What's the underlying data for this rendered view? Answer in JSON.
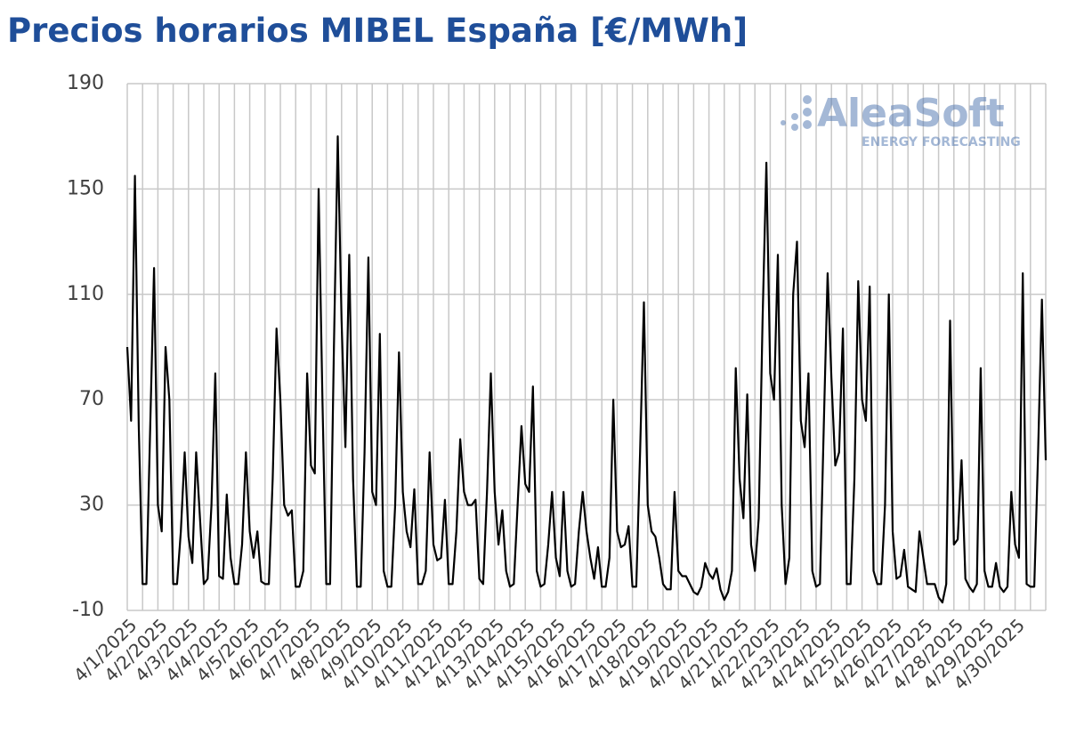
{
  "chart_data": {
    "type": "line",
    "title": "Precios horarios MIBEL España [€/MWh]",
    "watermark": {
      "name": "AleaSoft",
      "tagline": "ENERGY FORECASTING"
    },
    "color": "#000000",
    "ylim": [
      -10,
      190
    ],
    "yticks": [
      -10,
      30,
      70,
      110,
      150,
      190
    ],
    "grid": true,
    "categories": [
      "4/1/2025",
      null,
      null,
      null,
      null,
      null,
      null,
      null,
      "4/2/2025",
      null,
      null,
      null,
      null,
      null,
      null,
      null,
      "4/3/2025",
      null,
      null,
      null,
      null,
      null,
      null,
      null,
      "4/4/2025",
      null,
      null,
      null,
      null,
      null,
      null,
      null,
      "4/5/2025",
      null,
      null,
      null,
      null,
      null,
      null,
      null,
      "4/6/2025",
      null,
      null,
      null,
      null,
      null,
      null,
      null,
      "4/7/2025",
      null,
      null,
      null,
      null,
      null,
      null,
      null,
      "4/8/2025",
      null,
      null,
      null,
      null,
      null,
      null,
      null,
      "4/9/2025",
      null,
      null,
      null,
      null,
      null,
      null,
      null,
      "4/10/2025",
      null,
      null,
      null,
      null,
      null,
      null,
      null,
      "4/11/2025",
      null,
      null,
      null,
      null,
      null,
      null,
      null,
      "4/12/2025",
      null,
      null,
      null,
      null,
      null,
      null,
      null,
      "4/13/2025",
      null,
      null,
      null,
      null,
      null,
      null,
      null,
      "4/14/2025",
      null,
      null,
      null,
      null,
      null,
      null,
      null,
      "4/15/2025",
      null,
      null,
      null,
      null,
      null,
      null,
      null,
      "4/16/2025",
      null,
      null,
      null,
      null,
      null,
      null,
      null,
      "4/17/2025",
      null,
      null,
      null,
      null,
      null,
      null,
      null,
      "4/18/2025",
      null,
      null,
      null,
      null,
      null,
      null,
      null,
      "4/19/2025",
      null,
      null,
      null,
      null,
      null,
      null,
      null,
      "4/20/2025",
      null,
      null,
      null,
      null,
      null,
      null,
      null,
      "4/21/2025",
      null,
      null,
      null,
      null,
      null,
      null,
      null,
      "4/22/2025",
      null,
      null,
      null,
      null,
      null,
      null,
      null,
      "4/23/2025",
      null,
      null,
      null,
      null,
      null,
      null,
      null,
      "4/24/2025",
      null,
      null,
      null,
      null,
      null,
      null,
      null,
      "4/25/2025",
      null,
      null,
      null,
      null,
      null,
      null,
      null,
      "4/26/2025",
      null,
      null,
      null,
      null,
      null,
      null,
      null,
      "4/27/2025",
      null,
      null,
      null,
      null,
      null,
      null,
      null,
      "4/28/2025",
      null,
      null,
      null,
      null,
      null,
      null,
      null,
      "4/29/2025",
      null,
      null,
      null,
      null,
      null,
      null,
      null,
      "4/30/2025",
      null,
      null,
      null,
      null,
      null,
      null,
      null,
      null
    ],
    "values": [
      90,
      62,
      155,
      60,
      0,
      0,
      60,
      120,
      30,
      20,
      90,
      70,
      0,
      0,
      20,
      50,
      18,
      8,
      50,
      25,
      0,
      2,
      30,
      80,
      3,
      2,
      34,
      10,
      0,
      0,
      15,
      50,
      20,
      10,
      20,
      1,
      0,
      0,
      40,
      97,
      70,
      30,
      26,
      28,
      -1,
      -1,
      5,
      80,
      45,
      42,
      150,
      70,
      0,
      0,
      90,
      170,
      100,
      52,
      125,
      40,
      -1,
      -1,
      50,
      124,
      35,
      30,
      95,
      5,
      -1,
      -1,
      30,
      88,
      35,
      20,
      14,
      36,
      0,
      0,
      5,
      50,
      15,
      9,
      10,
      32,
      0,
      0,
      20,
      55,
      35,
      30,
      30,
      32,
      2,
      0,
      35,
      80,
      35,
      15,
      28,
      5,
      -1,
      0,
      30,
      60,
      38,
      35,
      75,
      5,
      -1,
      0,
      15,
      35,
      10,
      3,
      35,
      5,
      -1,
      0,
      20,
      35,
      20,
      10,
      2,
      14,
      -1,
      -1,
      10,
      70,
      20,
      14,
      15,
      22,
      -1,
      -1,
      50,
      107,
      30,
      20,
      18,
      10,
      0,
      -2,
      -2,
      35,
      5,
      3,
      3,
      0,
      -3,
      -4,
      -1,
      8,
      4,
      2,
      6,
      -2,
      -6,
      -3,
      5,
      82,
      40,
      25,
      72,
      15,
      5,
      25,
      100,
      160,
      80,
      70,
      125,
      30,
      0,
      10,
      110,
      130,
      62,
      52,
      80,
      5,
      -1,
      0,
      60,
      118,
      78,
      45,
      50,
      97,
      0,
      0,
      40,
      115,
      70,
      62,
      113,
      5,
      0,
      0,
      30,
      110,
      20,
      2,
      3,
      13,
      -1,
      -2,
      -3,
      20,
      10,
      0,
      0,
      0,
      -5,
      -7,
      0,
      100,
      15,
      17,
      47,
      2,
      -1,
      -3,
      0,
      82,
      5,
      -1,
      -1,
      8,
      -1,
      -3,
      -1,
      35,
      15,
      10,
      118,
      0,
      -1,
      -1,
      50,
      108,
      47
    ]
  }
}
